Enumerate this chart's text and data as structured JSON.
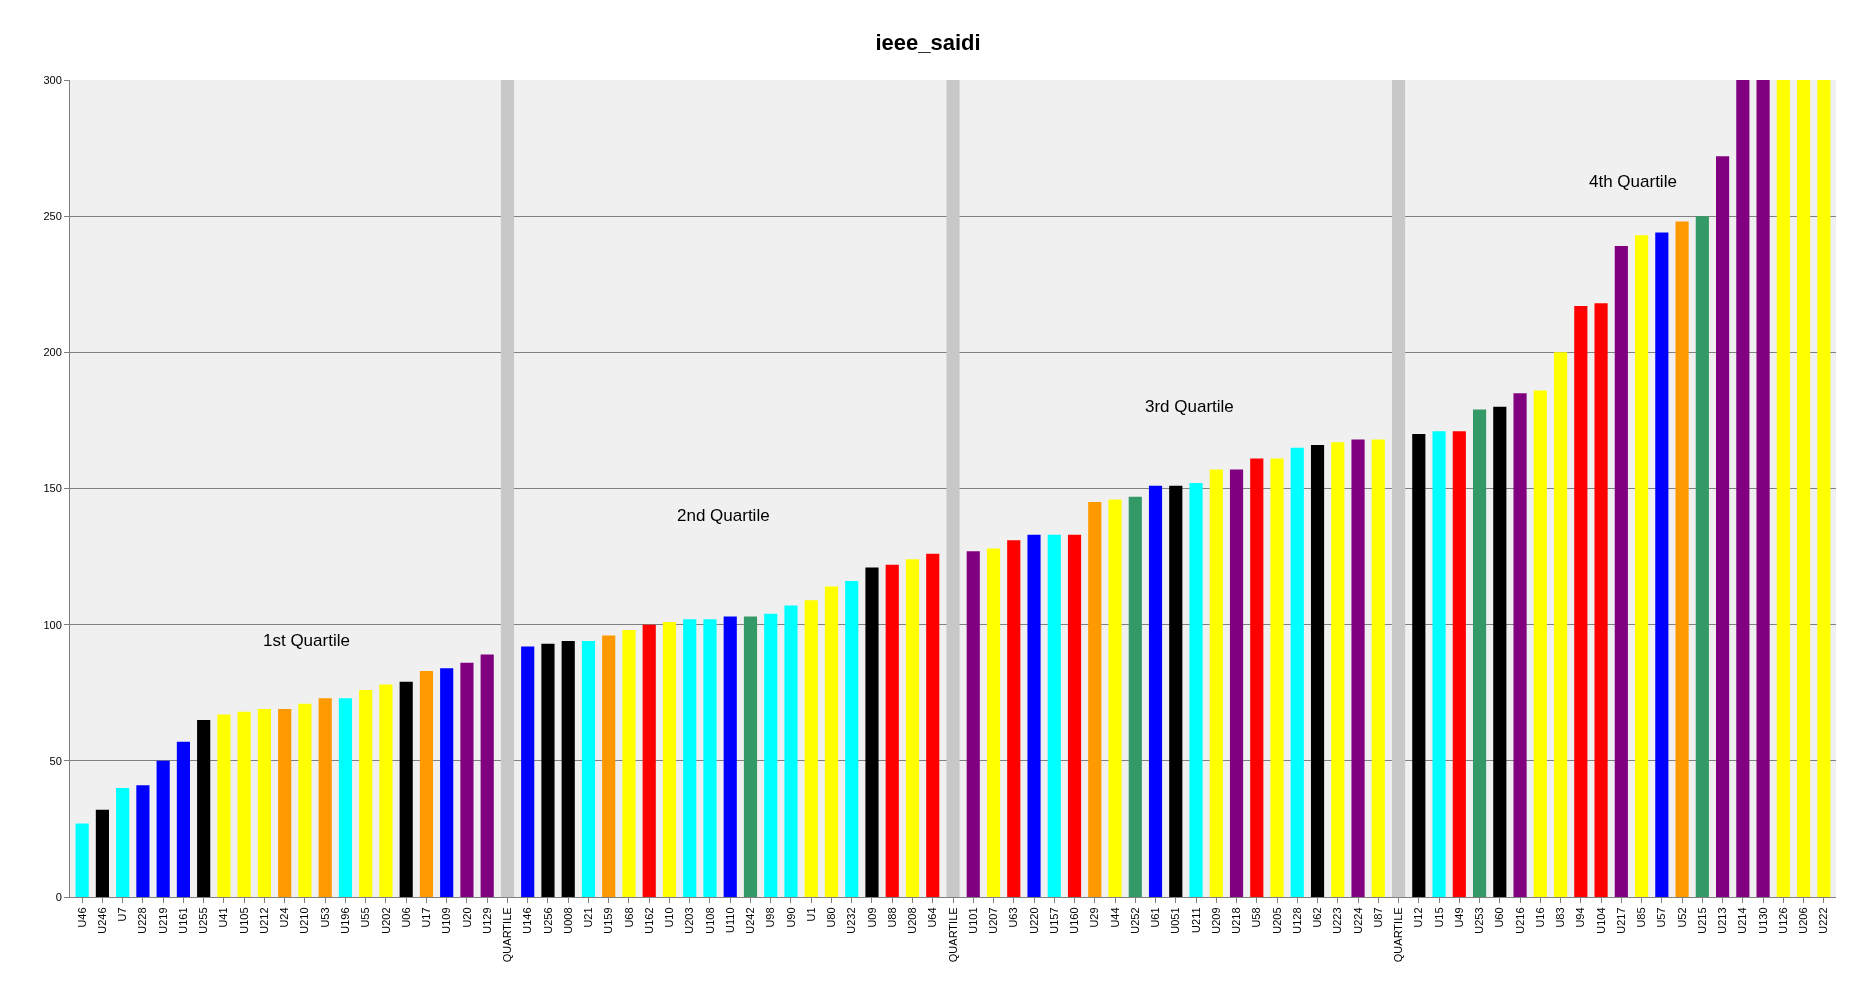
{
  "chart_data": {
    "type": "bar",
    "title": "ieee_saidi",
    "categories": [
      "U46",
      "U246",
      "U7",
      "U228",
      "U219",
      "U161",
      "U255",
      "U41",
      "U105",
      "U212",
      "U24",
      "U210",
      "U53",
      "U196",
      "U55",
      "U202",
      "U06",
      "U17",
      "U109",
      "U20",
      "U129",
      "QUARTILE",
      "U146",
      "U256",
      "U008",
      "U21",
      "U159",
      "U68",
      "U162",
      "U10",
      "U203",
      "U108",
      "U110",
      "U242",
      "U98",
      "U90",
      "U1",
      "U80",
      "U232",
      "U09",
      "U88",
      "U208",
      "U64",
      "QUARTILE",
      "U101",
      "U207",
      "U63",
      "U220",
      "U157",
      "U160",
      "U29",
      "U44",
      "U252",
      "U61",
      "U051",
      "U211",
      "U209",
      "U218",
      "U58",
      "U205",
      "U128",
      "U62",
      "U223",
      "U224",
      "U87",
      "QUARTILE",
      "U12",
      "U15",
      "U49",
      "U253",
      "U60",
      "U216",
      "U16",
      "U83",
      "U94",
      "U104",
      "U217",
      "U85",
      "U57",
      "U52",
      "U215",
      "U213",
      "U214",
      "U130",
      "U126",
      "U206",
      "U222"
    ],
    "values": [
      27,
      32,
      40,
      41,
      50,
      57,
      65,
      67,
      68,
      69,
      69,
      71,
      73,
      73,
      76,
      78,
      79,
      83,
      84,
      86,
      89,
      300,
      92,
      93,
      94,
      94,
      96,
      98,
      100,
      101,
      102,
      102,
      103,
      103,
      104,
      107,
      109,
      114,
      116,
      121,
      122,
      124,
      126,
      300,
      127,
      128,
      131,
      133,
      133,
      133,
      145,
      146,
      147,
      151,
      151,
      152,
      157,
      157,
      161,
      161,
      165,
      166,
      167,
      168,
      168,
      300,
      170,
      171,
      171,
      179,
      180,
      185,
      186,
      200,
      217,
      218,
      239,
      243,
      244,
      248,
      250,
      272,
      300,
      300,
      300,
      300,
      300
    ],
    "colors": [
      "#00ffff",
      "#000000",
      "#00ffff",
      "#0000ff",
      "#0000ff",
      "#0000ff",
      "#000000",
      "#ffff00",
      "#ffff00",
      "#ffff00",
      "#ff9900",
      "#ffff00",
      "#ff9900",
      "#00ffff",
      "#ffff00",
      "#ffff00",
      "#000000",
      "#ff9900",
      "#0000ff",
      "#800080",
      "#800080",
      "#c8c8c8",
      "#0000ff",
      "#000000",
      "#000000",
      "#00ffff",
      "#ff9900",
      "#ffff00",
      "#ff0000",
      "#ffff00",
      "#00ffff",
      "#00ffff",
      "#0000ff",
      "#339966",
      "#00ffff",
      "#00ffff",
      "#ffff00",
      "#ffff00",
      "#00ffff",
      "#000000",
      "#ff0000",
      "#ffff00",
      "#ff0000",
      "#c8c8c8",
      "#800080",
      "#ffff00",
      "#ff0000",
      "#0000ff",
      "#00ffff",
      "#ff0000",
      "#ff9900",
      "#ffff00",
      "#339966",
      "#0000ff",
      "#000000",
      "#00ffff",
      "#ffff00",
      "#800080",
      "#ff0000",
      "#ffff00",
      "#00ffff",
      "#000000",
      "#ffff00",
      "#800080",
      "#ffff00",
      "#c8c8c8",
      "#000000",
      "#00ffff",
      "#ff0000",
      "#339966",
      "#000000",
      "#800080",
      "#ffff00",
      "#ffff00",
      "#ff0000",
      "#ff0000",
      "#800080",
      "#ffff00",
      "#0000ff",
      "#ff9900",
      "#339966",
      "#800080",
      "#800080",
      "#800080",
      "#ffff00",
      "#ffff00",
      "#ffff00"
    ],
    "ylim": [
      0,
      300
    ],
    "yticks": [
      0,
      50,
      100,
      150,
      200,
      250,
      300
    ],
    "grid": "y",
    "annotations": [
      "1st Quartile",
      "2nd Quartile",
      "3rd Quartile",
      "4th Quartile"
    ]
  }
}
